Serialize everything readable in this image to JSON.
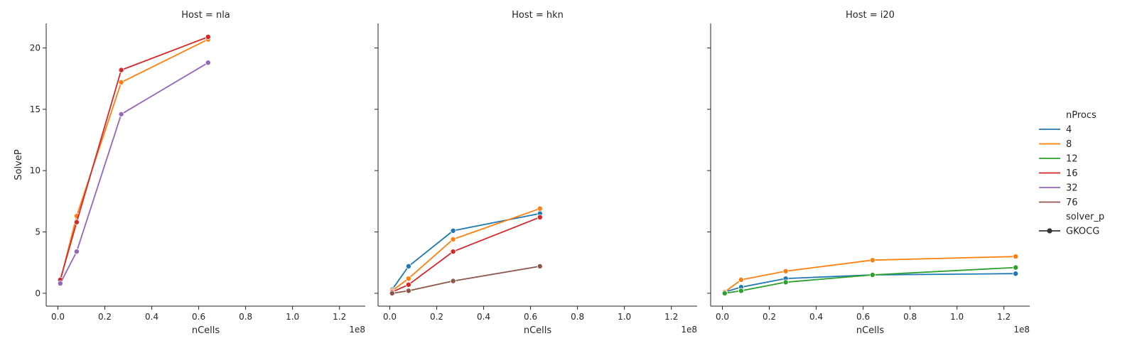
{
  "chart_data": {
    "type": "line",
    "x_offset_label": "1e8",
    "xlabel": "nCells",
    "ylabel": "SolveP",
    "xlim": [
      -0.05,
      1.31
    ],
    "ylim": [
      -1.05,
      22.0
    ],
    "xticks": [
      0.0,
      0.2,
      0.4,
      0.6,
      0.8,
      1.0,
      1.2
    ],
    "xtick_labels": [
      "0.0",
      "0.2",
      "0.4",
      "0.6",
      "0.8",
      "1.0",
      "1.2"
    ],
    "yticks": [
      0,
      5,
      10,
      15,
      20
    ],
    "ytick_labels": [
      "0",
      "5",
      "10",
      "15",
      "20"
    ],
    "grid": false,
    "legend": {
      "placement": "right",
      "hue_title": "nProcs",
      "style_title": "solver_p",
      "entries": [
        {
          "label": "4",
          "color": "#1f77b4"
        },
        {
          "label": "8",
          "color": "#ff7f0e"
        },
        {
          "label": "12",
          "color": "#2ca02c"
        },
        {
          "label": "16",
          "color": "#d62728"
        },
        {
          "label": "32",
          "color": "#9467bd"
        },
        {
          "label": "76",
          "color": "#8c564b"
        }
      ],
      "style_entries": [
        {
          "label": "GKOCG",
          "marker": "circle"
        }
      ]
    },
    "facets": [
      {
        "title": "Host = nla",
        "series": [
          {
            "name": "8",
            "color": "#ff7f0e",
            "x": [
              0.01,
              0.08,
              0.27,
              0.64
            ],
            "y": [
              1.0,
              6.3,
              17.2,
              20.7
            ]
          },
          {
            "name": "16",
            "color": "#d62728",
            "x": [
              0.01,
              0.08,
              0.27,
              0.64
            ],
            "y": [
              1.1,
              5.8,
              18.2,
              20.9
            ]
          },
          {
            "name": "32",
            "color": "#9467bd",
            "x": [
              0.01,
              0.08,
              0.27,
              0.64
            ],
            "y": [
              0.8,
              3.4,
              14.6,
              18.8
            ]
          }
        ]
      },
      {
        "title": "Host = hkn",
        "series": [
          {
            "name": "4",
            "color": "#1f77b4",
            "x": [
              0.01,
              0.08,
              0.27,
              0.64
            ],
            "y": [
              0.3,
              2.2,
              5.1,
              6.5
            ]
          },
          {
            "name": "8",
            "color": "#ff7f0e",
            "x": [
              0.01,
              0.08,
              0.27,
              0.64
            ],
            "y": [
              0.2,
              1.2,
              4.4,
              6.9
            ]
          },
          {
            "name": "16",
            "color": "#d62728",
            "x": [
              0.01,
              0.08,
              0.27,
              0.64
            ],
            "y": [
              0.1,
              0.7,
              3.4,
              6.2
            ]
          },
          {
            "name": "76",
            "color": "#8c564b",
            "x": [
              0.01,
              0.08,
              0.27,
              0.64
            ],
            "y": [
              0.0,
              0.2,
              1.0,
              2.2
            ]
          }
        ]
      },
      {
        "title": "Host = i20",
        "series": [
          {
            "name": "4",
            "color": "#1f77b4",
            "x": [
              0.01,
              0.08,
              0.27,
              0.64,
              1.25
            ],
            "y": [
              0.1,
              0.5,
              1.2,
              1.5,
              1.6
            ]
          },
          {
            "name": "8",
            "color": "#ff7f0e",
            "x": [
              0.01,
              0.08,
              0.27,
              0.64,
              1.25
            ],
            "y": [
              0.1,
              1.1,
              1.8,
              2.7,
              3.0
            ]
          },
          {
            "name": "12",
            "color": "#2ca02c",
            "x": [
              0.01,
              0.08,
              0.27,
              0.64,
              1.25
            ],
            "y": [
              0.0,
              0.2,
              0.9,
              1.5,
              2.1
            ]
          }
        ]
      }
    ]
  }
}
